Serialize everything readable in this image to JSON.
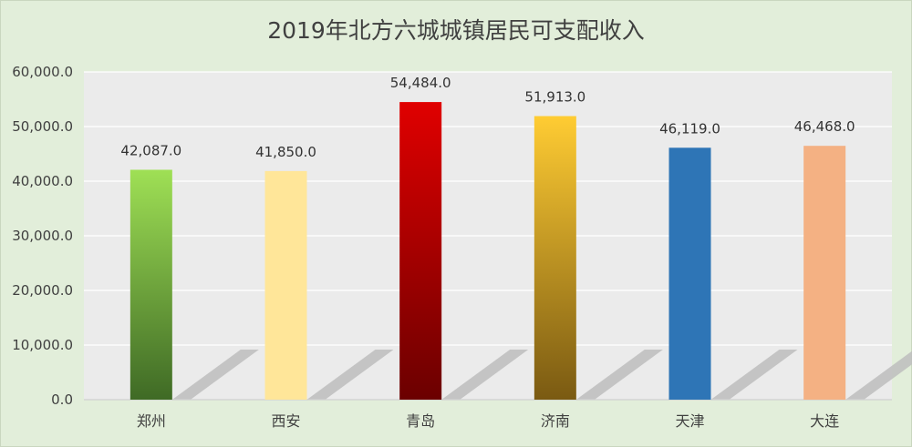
{
  "chart_data": {
    "type": "bar",
    "title": "2019年北方六城城镇居民可支配收入",
    "categories": [
      "郑州",
      "西安",
      "青岛",
      "济南",
      "天津",
      "大连"
    ],
    "values": [
      42087.0,
      41850.0,
      54484.0,
      51913.0,
      46119.0,
      46468.0
    ],
    "value_labels": [
      "42,087.0",
      "41,850.0",
      "54,484.0",
      "51,913.0",
      "46,119.0",
      "46,468.0"
    ],
    "ylim": [
      0,
      60000
    ],
    "yticks": [
      0,
      10000,
      20000,
      30000,
      40000,
      50000,
      60000
    ],
    "ytick_labels": [
      "0.0",
      "10,000.0",
      "20,000.0",
      "30,000.0",
      "40,000.0",
      "50,000.0",
      "60,000.0"
    ],
    "xlabel": "",
    "ylabel": "",
    "grid": true,
    "legend": "none",
    "bar_colors": [
      {
        "top": "#9fe055",
        "bottom": "#3f6a25"
      },
      {
        "top": "#ffe699",
        "bottom": "#ffe699"
      },
      {
        "top": "#e00000",
        "bottom": "#6b0000"
      },
      {
        "top": "#ffcc33",
        "bottom": "#7a5a12"
      },
      {
        "top": "#2e75b6",
        "bottom": "#2e75b6"
      },
      {
        "top": "#f4b183",
        "bottom": "#f4b183"
      }
    ],
    "chart_background": "#e2eeda",
    "plot_background": "#ebebeb",
    "gridline_color": "#ffffff"
  }
}
